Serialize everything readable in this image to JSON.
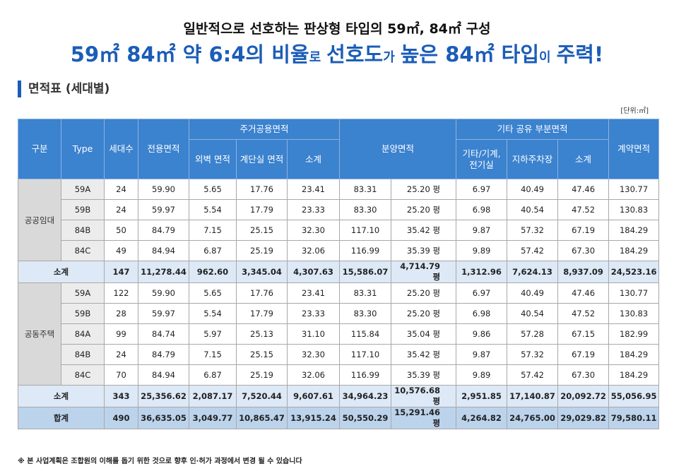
{
  "headline": {
    "line1": "일반적으로 선호하는 판상형 타입의 59㎡, 84㎡ 구성",
    "line2": [
      "59㎡ 84㎡ 약 6:4의 비율",
      "로",
      "선호도",
      "가",
      "높은 84㎡ 타입",
      "이",
      "주력!"
    ]
  },
  "section_title": "면적표 (세대별)",
  "unit_note": "[단위:㎡]",
  "table": {
    "header": {
      "group": "구분",
      "type": "Type",
      "households": "세대수",
      "exclusive": "전용면적",
      "residential_common": {
        "title": "주거공용면적",
        "cols": [
          "외벽 면적",
          "계단실 면적",
          "소계"
        ]
      },
      "sale": "분양면적",
      "other_common": {
        "title": "기타 공유 부분면적",
        "cols": [
          "기타/기계,\n전기실",
          "지하주차장",
          "소계"
        ]
      },
      "contract": "계약면적"
    },
    "groups": [
      {
        "name": "공공임대",
        "rows": [
          [
            "59A",
            "24",
            "59.90",
            "5.65",
            "17.76",
            "23.41",
            "83.31",
            "25.20 평",
            "6.97",
            "40.49",
            "47.46",
            "130.77"
          ],
          [
            "59B",
            "24",
            "59.97",
            "5.54",
            "17.79",
            "23.33",
            "83.30",
            "25.20 평",
            "6.98",
            "40.54",
            "47.52",
            "130.83"
          ],
          [
            "84B",
            "50",
            "84.79",
            "7.15",
            "25.15",
            "32.30",
            "117.10",
            "35.42 평",
            "9.87",
            "57.32",
            "67.19",
            "184.29"
          ],
          [
            "84C",
            "49",
            "84.94",
            "6.87",
            "25.19",
            "32.06",
            "116.99",
            "35.39 평",
            "9.89",
            "57.42",
            "67.30",
            "184.29"
          ]
        ],
        "subtotal": {
          "label": "소계",
          "cells": [
            "147",
            "11,278.44",
            "962.60",
            "3,345.04",
            "4,307.63",
            "15,586.07",
            "4,714.79 평",
            "1,312.96",
            "7,624.13",
            "8,937.09",
            "24,523.16"
          ]
        }
      },
      {
        "name": "공동주택",
        "rows": [
          [
            "59A",
            "122",
            "59.90",
            "5.65",
            "17.76",
            "23.41",
            "83.31",
            "25.20 평",
            "6.97",
            "40.49",
            "47.46",
            "130.77"
          ],
          [
            "59B",
            "28",
            "59.97",
            "5.54",
            "17.79",
            "23.33",
            "83.30",
            "25.20 평",
            "6.98",
            "40.54",
            "47.52",
            "130.83"
          ],
          [
            "84A",
            "99",
            "84.74",
            "5.97",
            "25.13",
            "31.10",
            "115.84",
            "35.04 평",
            "9.86",
            "57.28",
            "67.15",
            "182.99"
          ],
          [
            "84B",
            "24",
            "84.79",
            "7.15",
            "25.15",
            "32.30",
            "117.10",
            "35.42 평",
            "9.87",
            "57.32",
            "67.19",
            "184.29"
          ],
          [
            "84C",
            "70",
            "84.94",
            "6.87",
            "25.19",
            "32.06",
            "116.99",
            "35.39 평",
            "9.89",
            "57.42",
            "67.30",
            "184.29"
          ]
        ],
        "subtotal": {
          "label": "소계",
          "cells": [
            "343",
            "25,356.62",
            "2,087.17",
            "7,520.44",
            "9,607.61",
            "34,964.23",
            "10,576.68 평",
            "2,951.85",
            "17,140.87",
            "20,092.72",
            "55,056.95"
          ]
        }
      }
    ],
    "total": {
      "label": "합계",
      "cells": [
        "490",
        "36,635.05",
        "3,049.77",
        "10,865.47",
        "13,915.24",
        "50,550.29",
        "15,291.46 평",
        "4,264.82",
        "24,765.00",
        "29,029.82",
        "79,580.11"
      ]
    }
  },
  "footnote": "※ 본 사업계획은 조합원의 이해를 돕기 위한 것으로 향후 인·허가 과정에서 변경 될 수 있습니다"
}
